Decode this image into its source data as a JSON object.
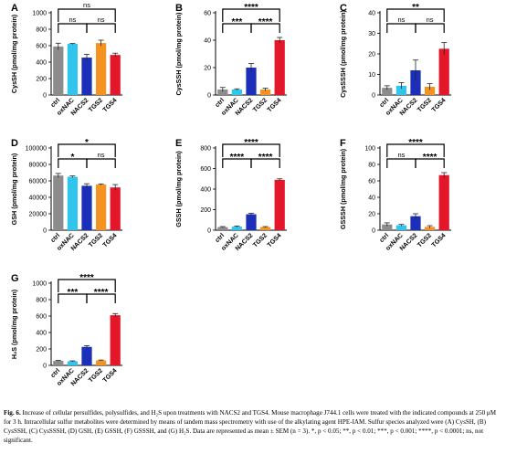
{
  "colors": {
    "ctrl": "#8c8c8c",
    "oxNAC": "#2fc5ec",
    "NACS2": "#1c2fb8",
    "TGS2": "#f59322",
    "TGS4": "#e3162a",
    "error": "#222222"
  },
  "chart_data": [
    {
      "type": "bar",
      "letter": "A",
      "ylabel": "CysSH (pmol/mg protein)",
      "categories": [
        "ctrl",
        "oxNAC",
        "NACS2",
        "TGS2",
        "TGS4"
      ],
      "values": [
        590,
        622,
        455,
        632,
        487
      ],
      "errors": [
        40,
        5,
        40,
        35,
        22
      ],
      "ylim": [
        0,
        1000
      ],
      "yticks": [
        "0",
        "200",
        "400",
        "600",
        "800",
        "1000"
      ],
      "brackets": [
        {
          "from": 0,
          "to": 4,
          "label": "ns",
          "level": 0
        },
        {
          "from": 0,
          "to": 2,
          "label": "ns",
          "level": 1
        },
        {
          "from": 2,
          "to": 4,
          "label": "ns",
          "level": 1
        }
      ]
    },
    {
      "type": "bar",
      "letter": "B",
      "ylabel": "CysSSH (pmol/mg protein)",
      "categories": [
        "ctrl",
        "oxNAC",
        "NACS2",
        "TGS2",
        "TGS4"
      ],
      "values": [
        4,
        4,
        20,
        4,
        40
      ],
      "errors": [
        1.5,
        0.5,
        3,
        1,
        2
      ],
      "ylim": [
        0,
        60
      ],
      "yticks": [
        "0",
        "20",
        "40",
        "60"
      ],
      "brackets": [
        {
          "from": 0,
          "to": 4,
          "label": "****",
          "level": 0
        },
        {
          "from": 0,
          "to": 2,
          "label": "***",
          "level": 1
        },
        {
          "from": 2,
          "to": 4,
          "label": "****",
          "level": 1
        }
      ]
    },
    {
      "type": "bar",
      "letter": "C",
      "ylabel": "CysSSSH (pmol/mg protein)",
      "categories": [
        "ctrl",
        "oxNAC",
        "NACS2",
        "TGS2",
        "TGS4"
      ],
      "values": [
        3.5,
        4.5,
        12,
        4,
        22.5
      ],
      "errors": [
        1,
        1.5,
        5,
        1.5,
        3
      ],
      "ylim": [
        0,
        40
      ],
      "yticks": [
        "0",
        "10",
        "20",
        "30",
        "40"
      ],
      "brackets": [
        {
          "from": 0,
          "to": 4,
          "label": "**",
          "level": 0
        },
        {
          "from": 0,
          "to": 2,
          "label": "ns",
          "level": 1
        },
        {
          "from": 2,
          "to": 4,
          "label": "ns",
          "level": 1
        }
      ]
    },
    {
      "type": "bar",
      "letter": "D",
      "ylabel": "GSH (pmol/mg protein)",
      "categories": [
        "ctrl",
        "oxNAC",
        "NACS2",
        "TGS2",
        "TGS4"
      ],
      "values": [
        66500,
        65000,
        54000,
        55500,
        52000
      ],
      "errors": [
        2500,
        1000,
        2500,
        800,
        3500
      ],
      "ylim": [
        0,
        100000
      ],
      "yticks": [
        "0",
        "20000",
        "40000",
        "60000",
        "80000",
        "100000"
      ],
      "brackets": [
        {
          "from": 0,
          "to": 4,
          "label": "*",
          "level": 0
        },
        {
          "from": 0,
          "to": 2,
          "label": "*",
          "level": 1
        },
        {
          "from": 2,
          "to": 4,
          "label": "ns",
          "level": 1
        }
      ]
    },
    {
      "type": "bar",
      "letter": "E",
      "ylabel": "GSSH (pmol/mg protein)",
      "categories": [
        "ctrl",
        "oxNAC",
        "NACS2",
        "TGS2",
        "TGS4"
      ],
      "values": [
        30,
        35,
        155,
        30,
        490
      ],
      "errors": [
        5,
        5,
        10,
        5,
        10
      ],
      "ylim": [
        0,
        800
      ],
      "yticks": [
        "0",
        "200",
        "400",
        "600",
        "800"
      ],
      "brackets": [
        {
          "from": 0,
          "to": 4,
          "label": "****",
          "level": 0
        },
        {
          "from": 0,
          "to": 2,
          "label": "****",
          "level": 1
        },
        {
          "from": 2,
          "to": 4,
          "label": "****",
          "level": 1
        }
      ]
    },
    {
      "type": "bar",
      "letter": "F",
      "ylabel": "GSSSH (pmol/mg protein)",
      "categories": [
        "ctrl",
        "oxNAC",
        "NACS2",
        "TGS2",
        "TGS4"
      ],
      "values": [
        7,
        6,
        17,
        4,
        67
      ],
      "errors": [
        2,
        1,
        3,
        1.5,
        3
      ],
      "ylim": [
        0,
        100
      ],
      "yticks": [
        "0",
        "20",
        "40",
        "60",
        "80",
        "100"
      ],
      "brackets": [
        {
          "from": 0,
          "to": 4,
          "label": "****",
          "level": 0
        },
        {
          "from": 0,
          "to": 2,
          "label": "ns",
          "level": 1
        },
        {
          "from": 2,
          "to": 4,
          "label": "****",
          "level": 1
        }
      ]
    },
    {
      "type": "bar",
      "letter": "G",
      "ylabel": "H₂S (pmol/mg protein)",
      "categories": [
        "ctrl",
        "oxNAC",
        "NACS2",
        "TGS2",
        "TGS4"
      ],
      "values": [
        55,
        50,
        225,
        60,
        610
      ],
      "errors": [
        5,
        5,
        15,
        5,
        20
      ],
      "ylim": [
        0,
        1000
      ],
      "yticks": [
        "0",
        "200",
        "400",
        "600",
        "800",
        "1000"
      ],
      "brackets": [
        {
          "from": 0,
          "to": 4,
          "label": "****",
          "level": 0
        },
        {
          "from": 0,
          "to": 2,
          "label": "***",
          "level": 1
        },
        {
          "from": 2,
          "to": 4,
          "label": "****",
          "level": 1
        }
      ]
    }
  ],
  "caption": {
    "fig_label": "Fig. 6.",
    "text": " Increase of cellular persulfides, polysulfides, and H₂S upon treatments with NACS2 and TGS4. Mouse macrophage J744.1 cells were treated with the indicated compounds at 250 μM for 3 h. Intracellular sulfur metabolites were determined by means of tandem mass spectrometry with use of the alkylating agent HPE-IAM. Sulfur species analyzed were (A) CysSH, (B) CysSSH, (C) CysSSSH, (D) GSH, (E) GSSH, (F) GSSSH, and (G) H₂S. Data are represented as mean ± SEM (n = 3). *, p < 0.05; **, p < 0.01; ***, p < 0.001; ****, p < 0.0001; ns, not significant."
  }
}
